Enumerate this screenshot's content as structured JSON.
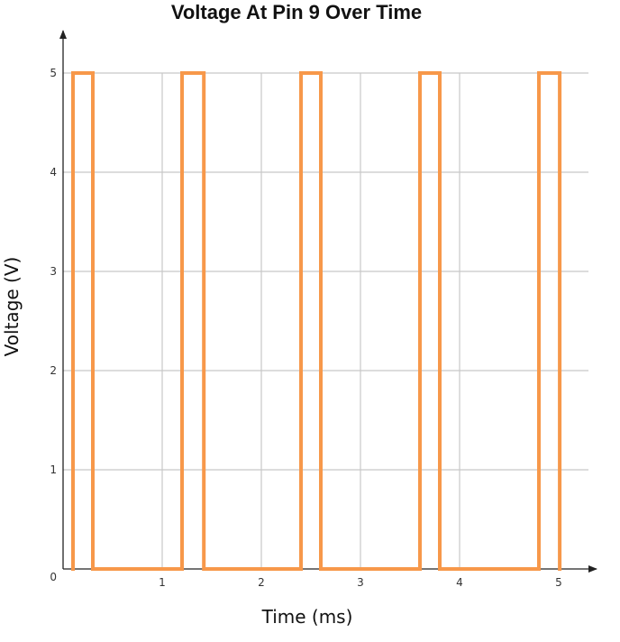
{
  "chart_data": {
    "type": "line",
    "title": "Voltage At Pin 9 Over Time",
    "xlabel": "Time (ms)",
    "ylabel": "Voltage (V)",
    "xlim": [
      0,
      5.3
    ],
    "ylim": [
      0,
      5
    ],
    "x_ticks": [
      1,
      2,
      3,
      4,
      5
    ],
    "y_ticks": [
      1,
      2,
      3,
      4,
      5
    ],
    "x_tick_labels": [
      "1",
      "2",
      "3",
      "4",
      "5"
    ],
    "y_tick_labels": [
      "1",
      "2",
      "3",
      "4",
      "5"
    ],
    "origin_label": "0",
    "grid": true,
    "series": [
      {
        "color": "#f7984a",
        "style": "square-wave",
        "x": [
          0.1,
          0.1,
          0.3,
          0.3,
          1.2,
          1.2,
          1.42,
          1.42,
          2.4,
          2.4,
          2.6,
          2.6,
          3.6,
          3.6,
          3.8,
          3.8,
          4.8,
          4.8,
          5.01,
          5.01
        ],
        "y": [
          0,
          5,
          5,
          0,
          0,
          5,
          5,
          0,
          0,
          5,
          5,
          0,
          0,
          5,
          5,
          0,
          0,
          5,
          5,
          0
        ]
      }
    ]
  }
}
